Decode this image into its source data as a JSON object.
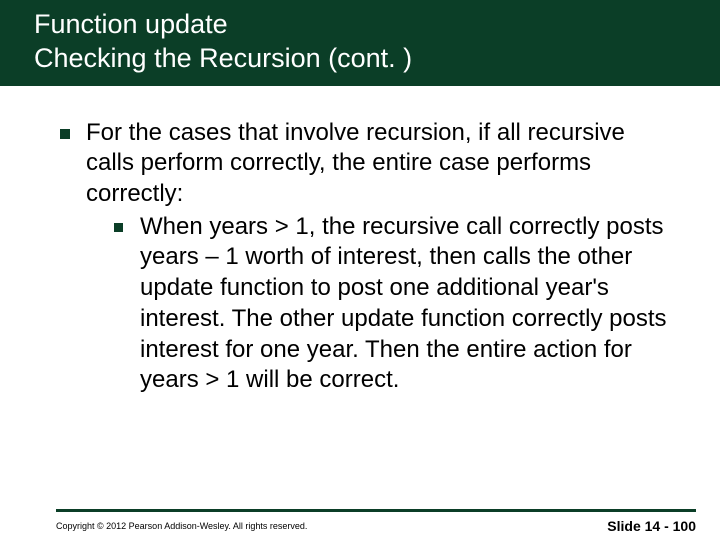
{
  "colors": {
    "header_bg": "#0b3e27",
    "header_text": "#ffffff",
    "body_text": "#000000",
    "bullet_color": "#0b3e27",
    "rule_color": "#0b3e27",
    "slide_bg": "#ffffff"
  },
  "typography": {
    "title_fontsize": 27,
    "body_fontsize": 24,
    "copyright_fontsize": 9,
    "slidenum_fontsize": 14,
    "font_family": "Arial"
  },
  "header": {
    "line1": "Function update",
    "line2": "Checking the Recursion (cont. )"
  },
  "bullets": [
    {
      "text": "For the cases that involve recursion, if all recursive calls perform correctly, the entire case performs correctly:",
      "children": [
        {
          "text": "When years > 1, the recursive call correctly posts years – 1 worth of interest, then calls the other update function to post one additional year's interest. The other update function correctly posts interest for one year.  Then the entire action for years > 1 will be correct."
        }
      ]
    }
  ],
  "footer": {
    "copyright": "Copyright © 2012 Pearson Addison-Wesley.  All rights reserved.",
    "slide_label": "Slide 14 - 100"
  }
}
